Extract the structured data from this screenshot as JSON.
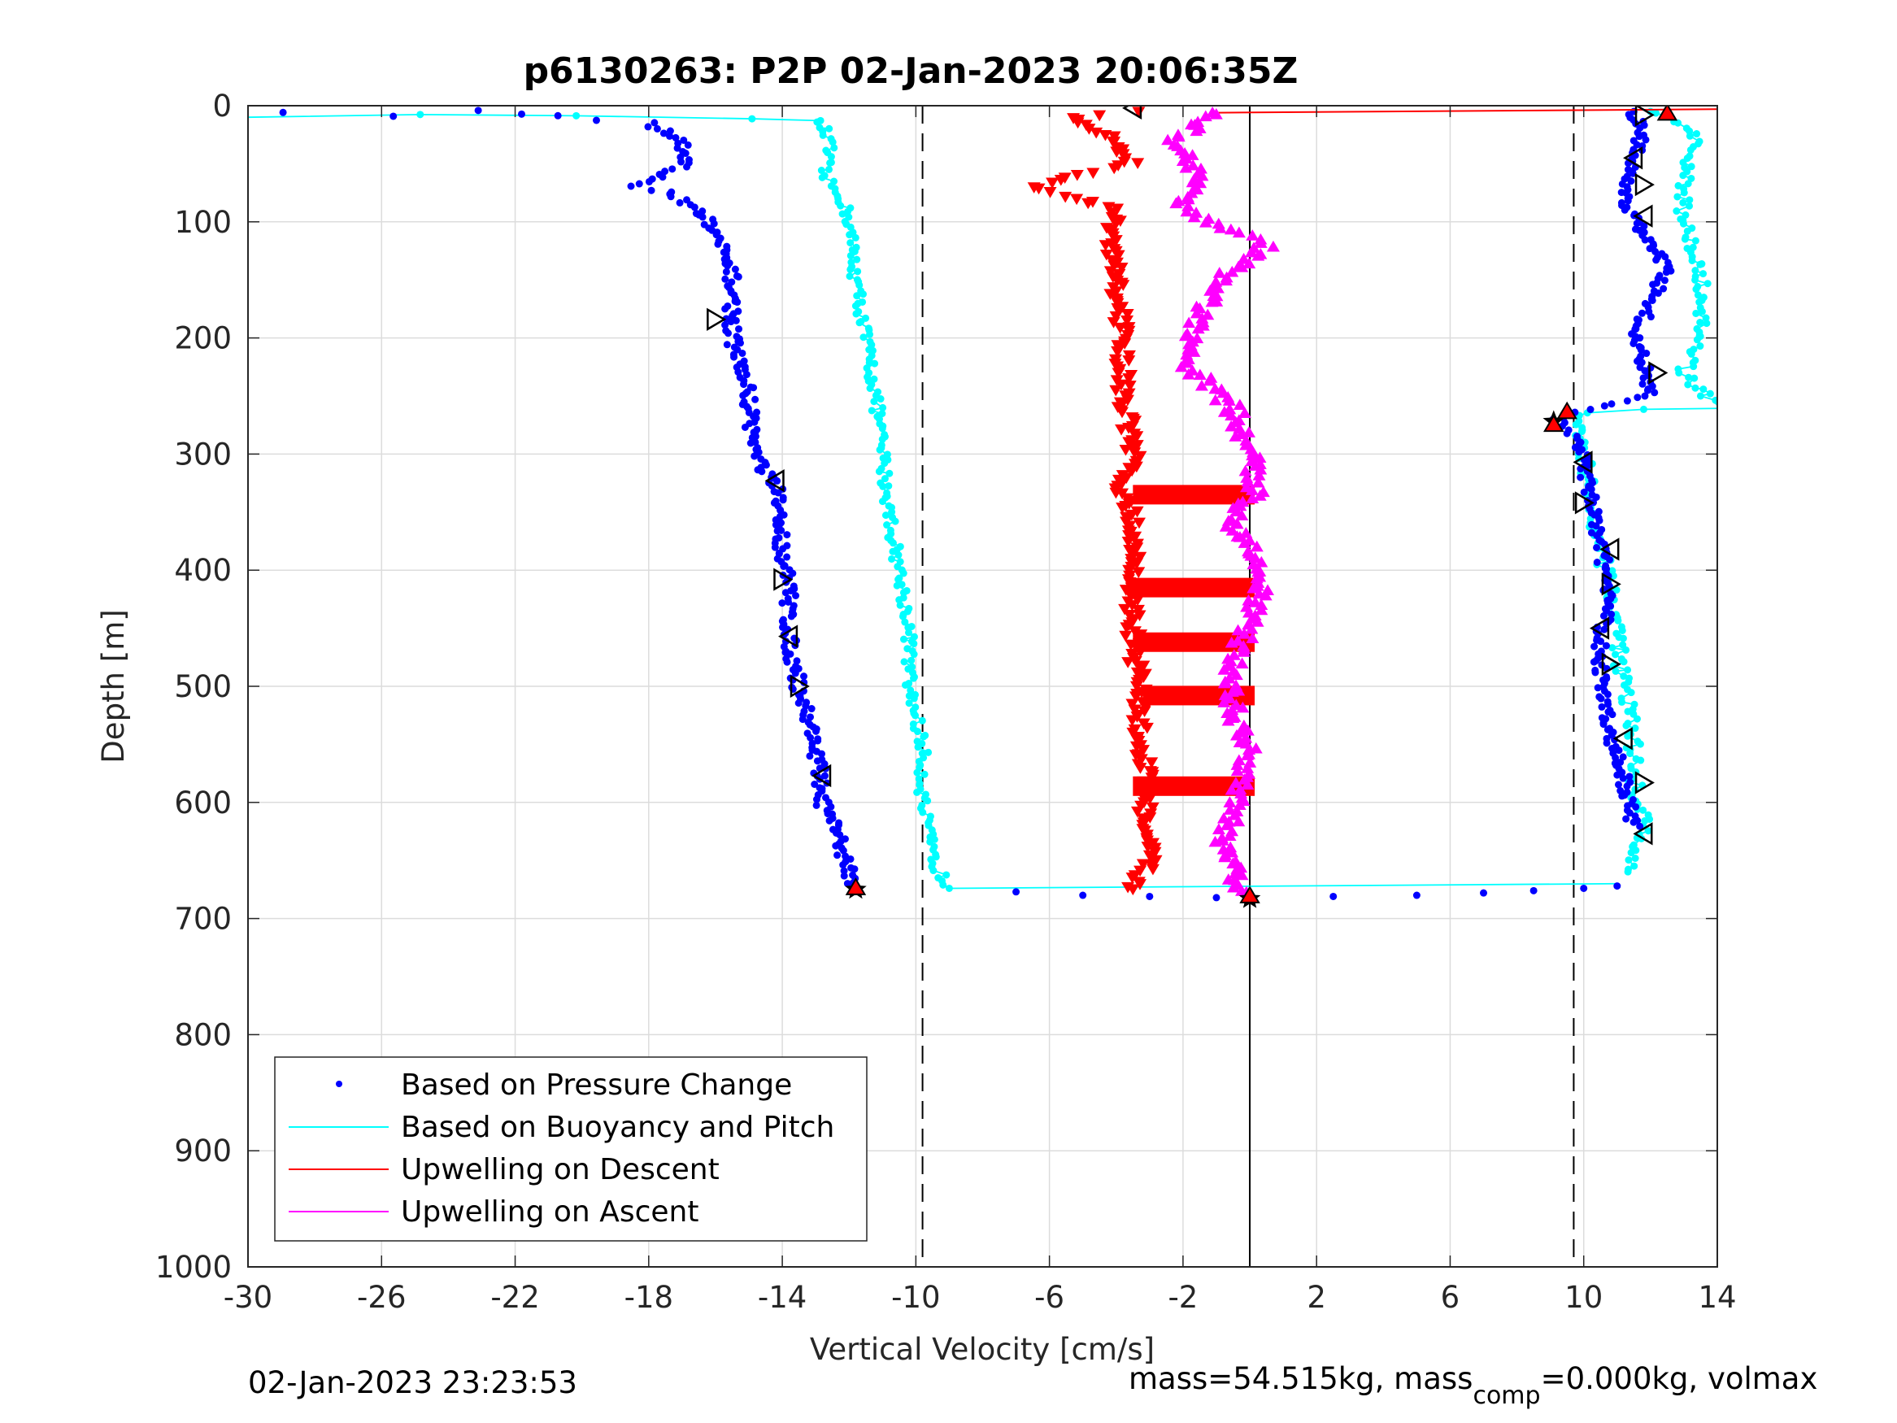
{
  "chart_data": {
    "type": "scatter",
    "title": "p6130263: P2P 02-Jan-2023 20:06:35Z",
    "xlabel": "Vertical Velocity [cm/s]",
    "ylabel": "Depth [m]",
    "xlim": [
      -30,
      14
    ],
    "ylim": [
      0,
      1000
    ],
    "y_reversed": true,
    "grid": true,
    "x_ticks": [
      -30,
      -26,
      -22,
      -18,
      -14,
      -10,
      -6,
      -2,
      2,
      6,
      10,
      14
    ],
    "y_ticks": [
      0,
      100,
      200,
      300,
      400,
      500,
      600,
      700,
      800,
      900,
      1000
    ],
    "reference_lines": {
      "dashed": [
        -9.8,
        9.7
      ],
      "solid": [
        0
      ]
    },
    "legend_position": "lower-left",
    "series": [
      {
        "name": "Based on Pressure Change",
        "style": "dots",
        "color": "#0000ff",
        "descent": [
          [
            -29,
            5
          ],
          [
            -25.5,
            8
          ],
          [
            -23,
            5
          ],
          [
            -19.5,
            12
          ],
          [
            -18,
            15
          ],
          [
            -17,
            30
          ],
          [
            -16.8,
            50
          ],
          [
            -18.5,
            70
          ],
          [
            -17.5,
            75
          ],
          [
            -16.5,
            90
          ],
          [
            -16,
            110
          ],
          [
            -15.5,
            150
          ],
          [
            -15.5,
            200
          ],
          [
            -15,
            250
          ],
          [
            -14.8,
            300
          ],
          [
            -14.2,
            330
          ],
          [
            -14,
            380
          ],
          [
            -13.8,
            420
          ],
          [
            -13.8,
            460
          ],
          [
            -13.5,
            500
          ],
          [
            -13,
            550
          ],
          [
            -12.8,
            600
          ],
          [
            -12.2,
            640
          ],
          [
            -11.8,
            675
          ]
        ],
        "bottom": [
          [
            -7,
            677
          ],
          [
            -5,
            680
          ],
          [
            -3,
            681
          ],
          [
            -1,
            682
          ],
          [
            2.5,
            681
          ],
          [
            5,
            680
          ],
          [
            7,
            678
          ],
          [
            8.5,
            676
          ],
          [
            10,
            674
          ],
          [
            11,
            672
          ]
        ],
        "ascent": [
          [
            11.5,
            620
          ],
          [
            11.2,
            580
          ],
          [
            10.8,
            540
          ],
          [
            10.5,
            500
          ],
          [
            10.5,
            460
          ],
          [
            10.8,
            420
          ],
          [
            10.5,
            380
          ],
          [
            10.2,
            340
          ],
          [
            10,
            300
          ],
          [
            9.5,
            280
          ],
          [
            9.2,
            268
          ],
          [
            12,
            250
          ],
          [
            11.8,
            220
          ],
          [
            11.5,
            200
          ],
          [
            12,
            170
          ],
          [
            12.5,
            140
          ],
          [
            11.8,
            110
          ],
          [
            11.2,
            80
          ],
          [
            11.5,
            50
          ],
          [
            11.8,
            20
          ],
          [
            11.5,
            5
          ]
        ]
      },
      {
        "name": "Based on Buoyancy and Pitch",
        "style": "line-with-dots",
        "color": "#00ffff",
        "descent": [
          [
            -30,
            9
          ],
          [
            -25,
            9
          ],
          [
            -20,
            10
          ],
          [
            -15,
            11
          ],
          [
            -13,
            12
          ],
          [
            -12.8,
            18
          ],
          [
            -12.6,
            35
          ],
          [
            -12.8,
            60
          ],
          [
            -12.2,
            80
          ],
          [
            -12,
            100
          ],
          [
            -11.8,
            150
          ],
          [
            -11.5,
            200
          ],
          [
            -11.2,
            250
          ],
          [
            -11,
            300
          ],
          [
            -10.8,
            350
          ],
          [
            -10.5,
            400
          ],
          [
            -10.2,
            450
          ],
          [
            -10.2,
            500
          ],
          [
            -9.8,
            550
          ],
          [
            -9.8,
            600
          ],
          [
            -9.5,
            650
          ],
          [
            -9,
            674
          ]
        ],
        "bottom_segment": [
          [
            -9,
            674
          ],
          [
            11,
            670
          ]
        ],
        "ascent": [
          [
            11.5,
            660
          ],
          [
            11.8,
            620
          ],
          [
            11.5,
            580
          ],
          [
            11.5,
            540
          ],
          [
            11.2,
            500
          ],
          [
            11,
            460
          ],
          [
            10.8,
            420
          ],
          [
            10.5,
            380
          ],
          [
            10.2,
            340
          ],
          [
            10,
            300
          ],
          [
            9.8,
            282
          ],
          [
            10,
            265
          ],
          [
            14,
            260
          ],
          [
            13,
            230
          ],
          [
            13.5,
            200
          ],
          [
            13.5,
            150
          ],
          [
            13,
            100
          ],
          [
            13,
            60
          ],
          [
            13.5,
            30
          ],
          [
            12.5,
            10
          ],
          [
            12,
            5
          ]
        ]
      },
      {
        "name": "Upwelling on Descent",
        "style": "down-triangles",
        "color": "#ff0000",
        "points": [
          [
            -3.5,
            5
          ],
          [
            -5.5,
            10
          ],
          [
            -4,
            30
          ],
          [
            -3.5,
            50
          ],
          [
            -6.5,
            70
          ],
          [
            -4,
            90
          ],
          [
            -4.2,
            110
          ],
          [
            -4,
            150
          ],
          [
            -3.8,
            200
          ],
          [
            -3.8,
            250
          ],
          [
            -3.5,
            300
          ],
          [
            -3.8,
            330
          ],
          [
            -3.5,
            360
          ],
          [
            -3.5,
            400
          ],
          [
            -3.5,
            420
          ],
          [
            -3.5,
            460
          ],
          [
            -3.3,
            500
          ],
          [
            -3.3,
            550
          ],
          [
            -3,
            580
          ],
          [
            -3.2,
            620
          ],
          [
            -3,
            650
          ],
          [
            -3.5,
            675
          ]
        ],
        "bands": [
          [
            -3.5,
            335
          ],
          [
            -3.5,
            415
          ],
          [
            -3.5,
            462
          ],
          [
            -3.2,
            508
          ],
          [
            -3.5,
            586
          ]
        ],
        "surface_line": [
          [
            -1,
            6
          ],
          [
            14,
            3
          ]
        ]
      },
      {
        "name": "Upwelling on Ascent",
        "style": "up-triangles",
        "color": "#ff00ff",
        "points": [
          [
            -1,
            5
          ],
          [
            -2.2,
            30
          ],
          [
            -1.5,
            60
          ],
          [
            -2,
            90
          ],
          [
            0.5,
            120
          ],
          [
            -1,
            150
          ],
          [
            -1.5,
            180
          ],
          [
            -2,
            220
          ],
          [
            -0.5,
            260
          ],
          [
            0,
            300
          ],
          [
            0.2,
            330
          ],
          [
            -0.5,
            360
          ],
          [
            0.5,
            400
          ],
          [
            0,
            440
          ],
          [
            -0.5,
            480
          ],
          [
            -0.5,
            520
          ],
          [
            0,
            560
          ],
          [
            -0.5,
            600
          ],
          [
            -0.8,
            640
          ],
          [
            -0.3,
            670
          ],
          [
            0,
            680
          ]
        ]
      }
    ],
    "markers": {
      "open_triangles_descent": [
        [
          -3.5,
          2
        ],
        [
          -16,
          184
        ],
        [
          -14.2,
          323
        ],
        [
          -14,
          408
        ],
        [
          -13.8,
          457
        ],
        [
          -13.5,
          500
        ],
        [
          -12.8,
          577
        ]
      ],
      "open_triangles_ascent": [
        [
          11.8,
          8
        ],
        [
          11.5,
          45
        ],
        [
          11.8,
          68
        ],
        [
          11.8,
          95
        ],
        [
          12.2,
          230
        ],
        [
          10,
          307
        ],
        [
          10,
          342
        ],
        [
          10.8,
          382
        ],
        [
          10.8,
          412
        ],
        [
          10.5,
          450
        ],
        [
          10.8,
          481
        ],
        [
          11.2,
          545
        ],
        [
          11.8,
          583
        ],
        [
          11.8,
          627
        ]
      ],
      "red_filled": [
        [
          -11.8,
          673
        ],
        [
          9.5,
          263
        ],
        [
          9.1,
          274
        ],
        [
          0,
          680
        ],
        [
          12.5,
          6
        ]
      ],
      "stars": [
        [
          -11.8,
          675
        ],
        [
          0,
          683
        ],
        [
          9.1,
          272
        ]
      ]
    }
  },
  "footer": {
    "timestamp": "02-Jan-2023 23:23:53",
    "mass_prefix": "mass=54.515kg, mass",
    "mass_sub": "comp",
    "mass_suffix": "=0.000kg, volmax"
  }
}
